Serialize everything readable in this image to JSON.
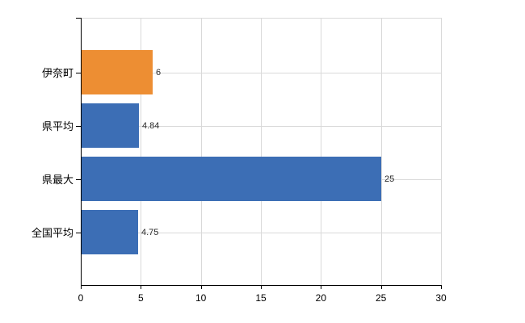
{
  "chart_data": {
    "type": "bar",
    "orientation": "horizontal",
    "title": "",
    "xlabel": "",
    "ylabel": "",
    "categories": [
      "伊奈町",
      "県平均",
      "県最大",
      "全国平均"
    ],
    "values": [
      6,
      4.84,
      25,
      4.75
    ],
    "value_labels": [
      "6",
      "4.84",
      "25",
      "4.75"
    ],
    "bar_colors": [
      "#ED8E33",
      "#3C6EB5",
      "#3C6EB5",
      "#3C6EB5"
    ],
    "xlim": [
      0,
      30
    ],
    "xticks": [
      0,
      5,
      10,
      15,
      20,
      25,
      30
    ],
    "xtick_labels": [
      "0",
      "5",
      "10",
      "15",
      "20",
      "25",
      "30"
    ],
    "grid": true,
    "legend": "none",
    "colors": {
      "highlight_bar": "#ED8E33",
      "default_bar": "#3C6EB5",
      "grid": "#D9D9D9",
      "axis": "#000000",
      "background": "#FFFFFF",
      "value_label_text": "#2B2B2B",
      "axis_label_text": "#000000"
    }
  }
}
